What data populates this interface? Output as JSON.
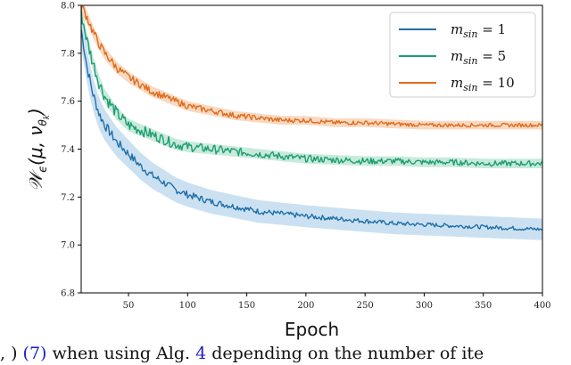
{
  "caption": {
    "part1": ", ) ",
    "ref1": "(7)",
    "part2": " when using Alg. ",
    "ref2": "4",
    "part3": " depending on the number of ite"
  },
  "chart_data": {
    "type": "line",
    "xlabel": "Epoch",
    "ylabel": "W_ε(μ, ν_θk)",
    "xlim": [
      10,
      400
    ],
    "ylim": [
      6.8,
      8.0
    ],
    "x_ticks": [
      "50",
      "100",
      "150",
      "200",
      "250",
      "300",
      "350",
      "400"
    ],
    "y_ticks": [
      "6.8",
      "7.0",
      "7.2",
      "7.4",
      "7.6",
      "7.8",
      "8.0"
    ],
    "legend_position": "top-right",
    "grid": false,
    "series": [
      {
        "name": "m_sin = 1",
        "legend_var": "m",
        "legend_sub": "sin",
        "legend_val": "= 1",
        "color": "#1f6fa8",
        "band_color": "#b9d7ee",
        "x": [
          10,
          15,
          20,
          25,
          30,
          40,
          50,
          60,
          70,
          80,
          90,
          100,
          120,
          140,
          160,
          180,
          200,
          225,
          250,
          275,
          300,
          325,
          350,
          375,
          400
        ],
        "y": [
          7.9,
          7.74,
          7.63,
          7.55,
          7.5,
          7.43,
          7.38,
          7.33,
          7.29,
          7.26,
          7.23,
          7.21,
          7.18,
          7.16,
          7.14,
          7.13,
          7.12,
          7.11,
          7.1,
          7.09,
          7.085,
          7.08,
          7.075,
          7.07,
          7.065
        ],
        "band_halfwidth": 0.045
      },
      {
        "name": "m_sin = 5",
        "legend_var": "m",
        "legend_sub": "sin",
        "legend_val": "= 5",
        "color": "#1d9e72",
        "band_color": "#b6e3cf",
        "x": [
          10,
          15,
          20,
          25,
          30,
          40,
          50,
          60,
          70,
          80,
          90,
          100,
          120,
          140,
          160,
          180,
          200,
          225,
          250,
          275,
          300,
          325,
          350,
          375,
          400
        ],
        "y": [
          7.97,
          7.85,
          7.76,
          7.68,
          7.62,
          7.55,
          7.5,
          7.48,
          7.46,
          7.44,
          7.42,
          7.41,
          7.4,
          7.39,
          7.38,
          7.37,
          7.36,
          7.355,
          7.35,
          7.35,
          7.345,
          7.345,
          7.34,
          7.34,
          7.34
        ],
        "band_halfwidth": 0.02
      },
      {
        "name": "m_sin = 10",
        "legend_var": "m",
        "legend_sub": "sin",
        "legend_val": "= 10",
        "color": "#e06c1b",
        "band_color": "#f5ccae",
        "x": [
          10,
          15,
          20,
          25,
          30,
          40,
          50,
          60,
          70,
          80,
          90,
          100,
          120,
          140,
          160,
          180,
          200,
          225,
          250,
          275,
          300,
          325,
          350,
          375,
          400
        ],
        "y": [
          8.0,
          7.95,
          7.89,
          7.84,
          7.8,
          7.74,
          7.7,
          7.67,
          7.64,
          7.62,
          7.6,
          7.58,
          7.56,
          7.54,
          7.53,
          7.52,
          7.52,
          7.51,
          7.51,
          7.505,
          7.5,
          7.5,
          7.5,
          7.5,
          7.5
        ],
        "band_halfwidth": 0.018
      }
    ]
  }
}
